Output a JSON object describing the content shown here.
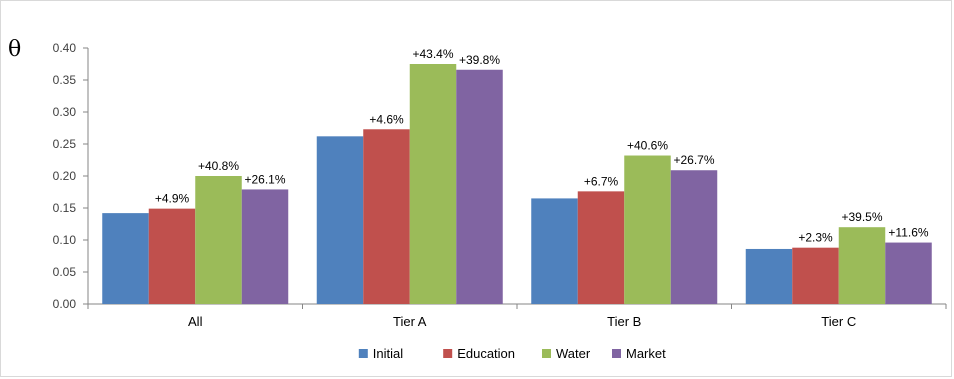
{
  "chart_data": {
    "type": "bar",
    "title": "",
    "ylabel": "θ",
    "xlabel": "",
    "ylim": [
      0,
      0.4
    ],
    "yticks": [
      "0.00",
      "0.05",
      "0.10",
      "0.15",
      "0.20",
      "0.25",
      "0.30",
      "0.35",
      "0.40"
    ],
    "categories": [
      "All",
      "Tier A",
      "Tier B",
      "Tier C"
    ],
    "grid": false,
    "legend_position": "bottom",
    "series": [
      {
        "name": "Initial",
        "color": "#4F81BD",
        "values": [
          0.142,
          0.262,
          0.165,
          0.086
        ],
        "labels": [
          "",
          "",
          "",
          ""
        ]
      },
      {
        "name": "Education",
        "color": "#C0504D",
        "values": [
          0.149,
          0.273,
          0.176,
          0.088
        ],
        "labels": [
          "+4.9%",
          "+4.6%",
          "+6.7%",
          "+2.3%"
        ]
      },
      {
        "name": "Water",
        "color": "#9BBB59",
        "values": [
          0.2,
          0.375,
          0.232,
          0.12
        ],
        "labels": [
          "+40.8%",
          "+43.4%",
          "+40.6%",
          "+39.5%"
        ]
      },
      {
        "name": "Market",
        "color": "#8064A2",
        "values": [
          0.179,
          0.366,
          0.209,
          0.096
        ],
        "labels": [
          "+26.1%",
          "+39.8%",
          "+26.7%",
          "+11.6%"
        ]
      }
    ]
  }
}
